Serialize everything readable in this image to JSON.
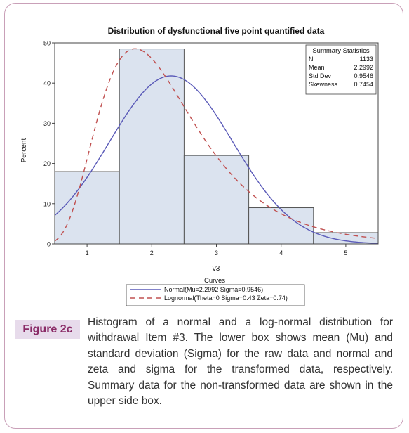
{
  "chart_data": {
    "type": "bar",
    "title": "Distribution of dysfunctional five point quantified data",
    "xlabel": "v3",
    "ylabel": "Percent",
    "xlim": [
      0.5,
      5.5
    ],
    "ylim": [
      0,
      50
    ],
    "x_ticks": [
      "1",
      "2",
      "3",
      "4",
      "5"
    ],
    "y_ticks": [
      "0",
      "10",
      "20",
      "30",
      "40",
      "50"
    ],
    "bins": [
      {
        "from": 0.5,
        "to": 1.5,
        "value": 18
      },
      {
        "from": 1.5,
        "to": 2.5,
        "value": 48.5
      },
      {
        "from": 2.5,
        "to": 3.5,
        "value": 22
      },
      {
        "from": 3.5,
        "to": 4.5,
        "value": 9
      },
      {
        "from": 4.5,
        "to": 5.5,
        "value": 2.8
      }
    ],
    "curves": [
      {
        "name": "Normal(Mu=2.2992 Sigma=0.9546)",
        "kind": "normal",
        "mu": 2.2992,
        "sigma": 0.9546,
        "style": "solid",
        "color": "#5a5ab8"
      },
      {
        "name": "Lognormal(Theta=0 Sigma=0.43 Zeta=0.74)",
        "kind": "lognormal",
        "theta": 0,
        "sigma": 0.43,
        "zeta": 0.74,
        "style": "dashed",
        "color": "#c05050"
      }
    ],
    "legend_title": "Curves",
    "legend_placement": "bottom",
    "summary": {
      "title": "Summary Statistics",
      "rows": [
        {
          "label": "N",
          "value": "1133"
        },
        {
          "label": "Mean",
          "value": "2.2992"
        },
        {
          "label": "Std Dev",
          "value": "0.9546"
        },
        {
          "label": "Skewness",
          "value": "0.7454"
        }
      ],
      "placement": "top-right"
    },
    "bar_fill": "#dbe3ef",
    "bar_stroke": "#555555"
  },
  "figure": {
    "label": "Figure 2c",
    "caption": "Histogram of a normal and a log-normal distribution for withdrawal Item #3. The lower box shows mean (Mu) and standard deviation (Sigma) for the raw data and normal and zeta and sigma for the transformed data, respectively. Summary data for the non-transformed data are shown in the upper side box."
  }
}
